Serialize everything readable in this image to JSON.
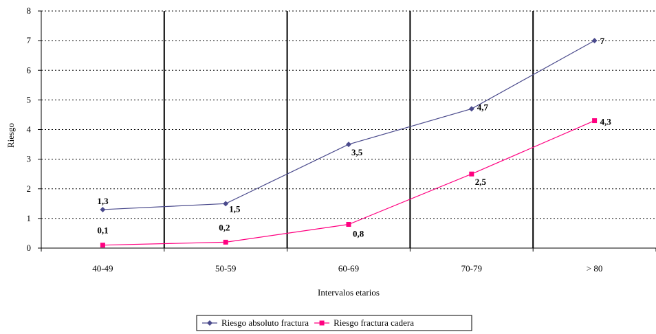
{
  "chart_data": {
    "type": "line",
    "categories": [
      "40-49",
      "50-59",
      "60-69",
      "70-79",
      "> 80"
    ],
    "series": [
      {
        "name": "Riesgo absoluto fractura",
        "values": [
          1.3,
          1.5,
          3.5,
          4.7,
          7
        ],
        "labels": [
          "1,3",
          "1,5",
          "3,5",
          "4,7",
          "7"
        ],
        "color": "#4a4a8c",
        "marker": "diamond"
      },
      {
        "name": "Riesgo fractura cadera",
        "values": [
          0.1,
          0.2,
          0.8,
          2.5,
          4.3
        ],
        "labels": [
          "0,1",
          "0,2",
          "0,8",
          "2,5",
          "4,3"
        ],
        "color": "#ff0080",
        "marker": "square"
      }
    ],
    "xlabel": "Intervalos etarios",
    "ylabel": "Riesgo",
    "ylim": [
      0,
      8
    ],
    "yticks": [
      0,
      1,
      2,
      3,
      4,
      5,
      6,
      7,
      8
    ],
    "grid": "horizontal dotted",
    "legend": "bottom"
  }
}
